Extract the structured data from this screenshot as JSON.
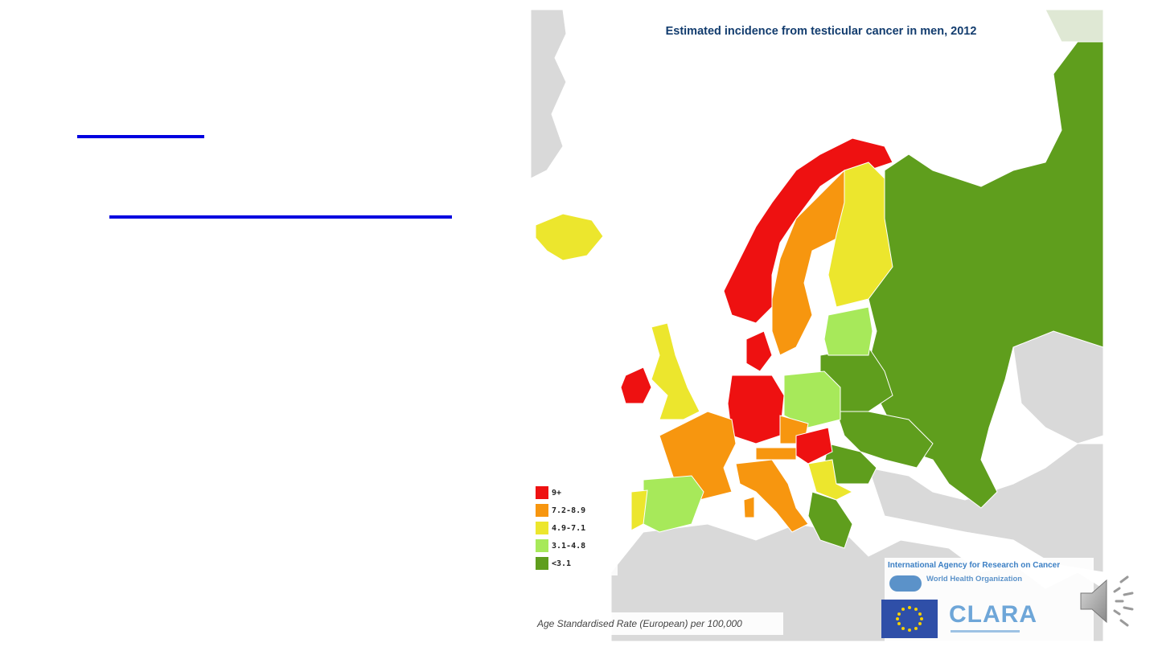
{
  "map": {
    "title": "Estimated incidence from testicular cancer in men, 2012",
    "legend": [
      {
        "label": "9+",
        "color": "#ee1111"
      },
      {
        "label": "7.2-8.9",
        "color": "#f7960f"
      },
      {
        "label": "4.9-7.1",
        "color": "#ece62d"
      },
      {
        "label": "3.1-4.8",
        "color": "#a7e95a"
      },
      {
        "label": "<3.1",
        "color": "#5f9e1d"
      }
    ],
    "footnote": "Age Standardised Rate (European) per 100,000",
    "source": "International Agency for Research on Cancer",
    "who_name": "World Health Organization",
    "partner": "CLARA",
    "background_land_color": "#d9d9d9"
  },
  "slide": {
    "speaker_icon": "speaker-icon"
  }
}
